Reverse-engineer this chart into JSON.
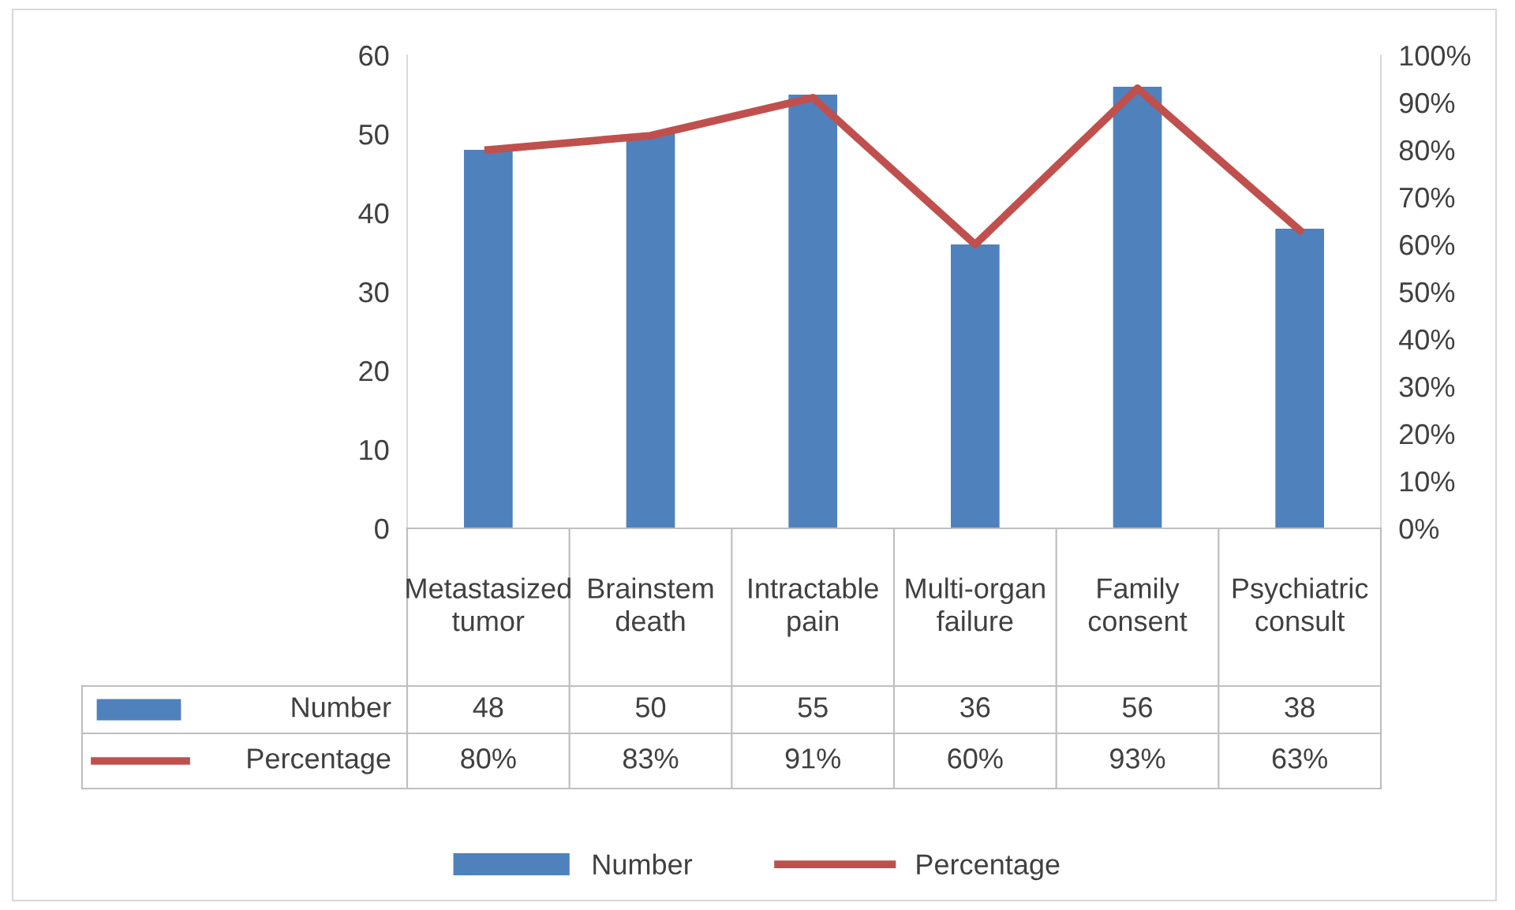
{
  "chart_data": {
    "type": "bar",
    "categories": [
      "Metastasized tumor",
      "Brainstem death",
      "Intractable pain",
      "Multi-organ failure",
      "Family consent",
      "Psychiatric consult"
    ],
    "series": [
      {
        "name": "Number",
        "color": "#4f81bd",
        "values": [
          48,
          50,
          55,
          36,
          56,
          38
        ],
        "value_labels": [
          "48",
          "50",
          "55",
          "36",
          "56",
          "38"
        ]
      },
      {
        "name": "Percentage",
        "type": "line",
        "axis": "y2",
        "color": "#c0504d",
        "values": [
          80,
          83,
          91,
          60,
          93,
          63
        ],
        "value_labels": [
          "80%",
          "83%",
          "91%",
          "60%",
          "93%",
          "63%"
        ]
      }
    ],
    "ylim": [
      0,
      60
    ],
    "yticks": [
      0,
      10,
      20,
      30,
      40,
      50,
      60
    ],
    "y2lim": [
      0,
      100
    ],
    "y2ticks": [
      {
        "value": 0,
        "label": "0%"
      },
      {
        "value": 10,
        "label": "10%"
      },
      {
        "value": 20,
        "label": "20%"
      },
      {
        "value": 30,
        "label": "30%"
      },
      {
        "value": 40,
        "label": "40%"
      },
      {
        "value": 50,
        "label": "50%"
      },
      {
        "value": 60,
        "label": "60%"
      },
      {
        "value": 70,
        "label": "70%"
      },
      {
        "value": 80,
        "label": "80%"
      },
      {
        "value": 90,
        "label": "90%"
      },
      {
        "value": 100,
        "label": "100%"
      }
    ],
    "grid": false,
    "legend": "bottom",
    "marker": "none",
    "line_style": "solid"
  }
}
